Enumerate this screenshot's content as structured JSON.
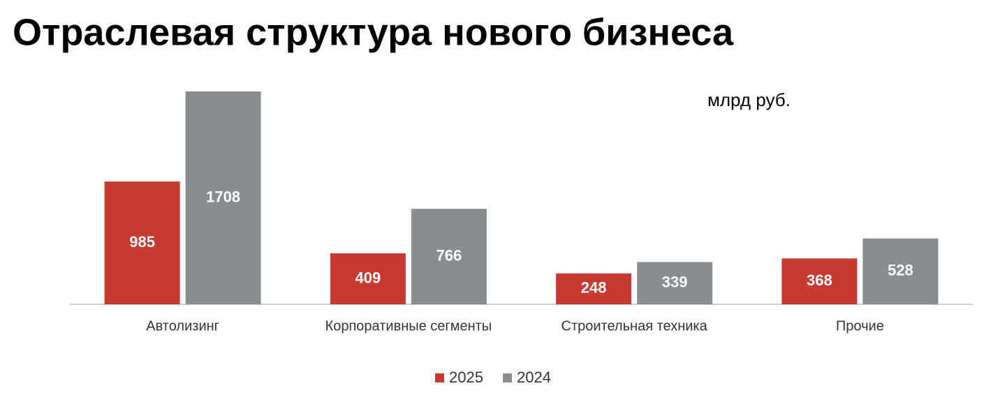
{
  "chart_data": {
    "type": "bar",
    "title": "Отраслевая структура нового бизнеса",
    "unit_label": "млрд руб.",
    "categories": [
      "Автолизинг",
      "Корпоративные сегменты",
      "Строительная техника",
      "Прочие"
    ],
    "series": [
      {
        "name": "2025",
        "color": "#c73a31",
        "values": [
          985,
          409,
          248,
          368
        ]
      },
      {
        "name": "2024",
        "color": "#8a8d8f",
        "values": [
          1708,
          766,
          339,
          528
        ]
      }
    ]
  }
}
